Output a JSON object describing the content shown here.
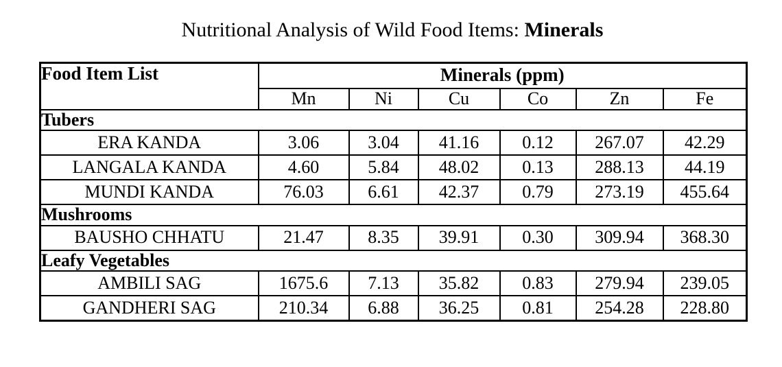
{
  "title": {
    "prefix": "Nutritional Analysis of Wild Food Items: ",
    "emphasis": "Minerals"
  },
  "table": {
    "food_column_header": "Food Item List",
    "group_header": "Minerals (ppm)",
    "mineral_columns": [
      "Mn",
      "Ni",
      "Cu",
      "Co",
      "Zn",
      "Fe"
    ],
    "sections": [
      {
        "name": "Tubers",
        "rows": [
          {
            "food": "ERA KANDA",
            "values": [
              "3.06",
              "3.04",
              "41.16",
              "0.12",
              "267.07",
              "42.29"
            ]
          },
          {
            "food": "LANGALA KANDA",
            "values": [
              "4.60",
              "5.84",
              "48.02",
              "0.13",
              "288.13",
              "44.19"
            ]
          },
          {
            "food": "MUNDI KANDA",
            "values": [
              "76.03",
              "6.61",
              "42.37",
              "0.79",
              "273.19",
              "455.64"
            ]
          }
        ]
      },
      {
        "name": "Mushrooms",
        "rows": [
          {
            "food": "BAUSHO CHHATU",
            "values": [
              "21.47",
              "8.35",
              "39.91",
              "0.30",
              "309.94",
              "368.30"
            ]
          }
        ]
      },
      {
        "name": "Leafy Vegetables",
        "rows": [
          {
            "food": "AMBILI SAG",
            "values": [
              "1675.6",
              "7.13",
              "35.82",
              "0.83",
              "279.94",
              "239.05"
            ]
          },
          {
            "food": "GANDHERI SAG",
            "values": [
              "210.34",
              "6.88",
              "36.25",
              "0.81",
              "254.28",
              "228.80"
            ]
          }
        ]
      }
    ]
  },
  "colors": {
    "text": "#000000",
    "background": "#ffffff",
    "border": "#000000"
  }
}
